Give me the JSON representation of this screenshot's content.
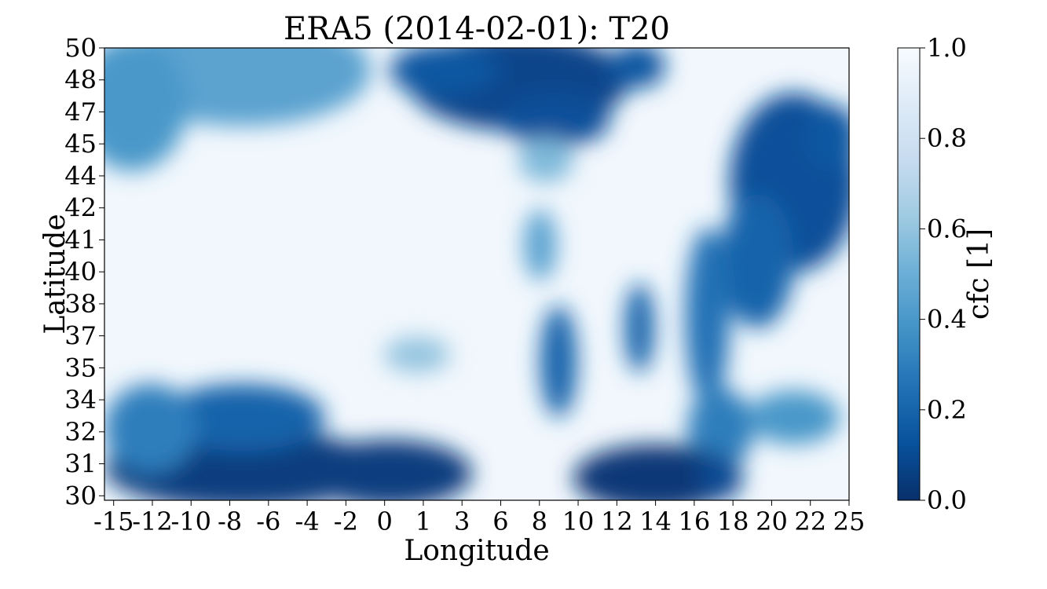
{
  "chart_data": {
    "type": "heatmap",
    "title": "ERA5 (2014-02-01): T20",
    "xlabel": "Longitude",
    "ylabel": "Latitude",
    "xlim": [
      -15.5,
      25
    ],
    "ylim": [
      29.8,
      50
    ],
    "x_ticks": [
      "-15",
      "-12",
      "-10",
      "-8",
      "-6",
      "-4",
      "-2",
      "0",
      "1",
      "3",
      "6",
      "8",
      "10",
      "12",
      "14",
      "16",
      "18",
      "20",
      "22",
      "25"
    ],
    "y_ticks": [
      "50",
      "48",
      "47",
      "45",
      "44",
      "42",
      "41",
      "40",
      "38",
      "37",
      "35",
      "34",
      "32",
      "31",
      "30"
    ],
    "colorbar": {
      "label": "cfc [1]",
      "colormap": "Blues_r",
      "vmin": 0.0,
      "vmax": 1.0,
      "ticks": [
        "0.0",
        "0.2",
        "0.4",
        "0.6",
        "0.8",
        "1.0"
      ],
      "tick_values": [
        0.0,
        0.2,
        0.4,
        0.6,
        0.8,
        1.0
      ]
    },
    "field": {
      "variable": "cfc",
      "background": 0.97,
      "features": [
        {
          "lon": -8,
          "lat": 49,
          "rx": 7,
          "ry": 2.5,
          "v": 0.45
        },
        {
          "lon": -14,
          "lat": 47.5,
          "rx": 3,
          "ry": 3,
          "v": 0.4
        },
        {
          "lon": 7,
          "lat": 48.5,
          "rx": 6,
          "ry": 2.2,
          "v": 0.08
        },
        {
          "lon": 9,
          "lat": 46.8,
          "rx": 3,
          "ry": 1.2,
          "v": 0.12
        },
        {
          "lon": 3,
          "lat": 49,
          "rx": 3,
          "ry": 1.2,
          "v": 0.15
        },
        {
          "lon": 13.5,
          "lat": 49.2,
          "rx": 1.5,
          "ry": 1,
          "v": 0.15
        },
        {
          "lon": 22,
          "lat": 44,
          "rx": 3.5,
          "ry": 4,
          "v": 0.12
        },
        {
          "lon": 20,
          "lat": 40.5,
          "rx": 2,
          "ry": 3,
          "v": 0.2
        },
        {
          "lon": 17.3,
          "lat": 38,
          "rx": 1.2,
          "ry": 4,
          "v": 0.25
        },
        {
          "lon": 18,
          "lat": 33,
          "rx": 1.8,
          "ry": 1.8,
          "v": 0.3
        },
        {
          "lon": 24,
          "lat": 46,
          "rx": 1.5,
          "ry": 1.5,
          "v": 0.15
        },
        {
          "lon": 14.5,
          "lat": 30.8,
          "rx": 4.5,
          "ry": 1.5,
          "v": 0.03
        },
        {
          "lon": -8,
          "lat": 31.2,
          "rx": 7.5,
          "ry": 1.8,
          "v": 0.05
        },
        {
          "lon": 0,
          "lat": 31,
          "rx": 4.5,
          "ry": 1.5,
          "v": 0.05
        },
        {
          "lon": -8,
          "lat": 33.5,
          "rx": 4.5,
          "ry": 1.5,
          "v": 0.2
        },
        {
          "lon": -13,
          "lat": 33,
          "rx": 2.5,
          "ry": 2,
          "v": 0.3
        },
        {
          "lon": 9.2,
          "lat": 36,
          "rx": 1,
          "ry": 2.5,
          "v": 0.2
        },
        {
          "lon": 13.6,
          "lat": 37.5,
          "rx": 0.8,
          "ry": 2,
          "v": 0.2
        },
        {
          "lon": 8.2,
          "lat": 41.2,
          "rx": 0.9,
          "ry": 1.6,
          "v": 0.45
        },
        {
          "lon": 1.5,
          "lat": 36.3,
          "rx": 1.8,
          "ry": 0.8,
          "v": 0.6
        },
        {
          "lon": 8.5,
          "lat": 45,
          "rx": 1.5,
          "ry": 1,
          "v": 0.55
        },
        {
          "lon": 22,
          "lat": 33.5,
          "rx": 2.5,
          "ry": 1.2,
          "v": 0.4
        },
        {
          "lon": 18,
          "lat": 30.8,
          "rx": 1.2,
          "ry": 1,
          "v": 0.1
        }
      ]
    }
  }
}
